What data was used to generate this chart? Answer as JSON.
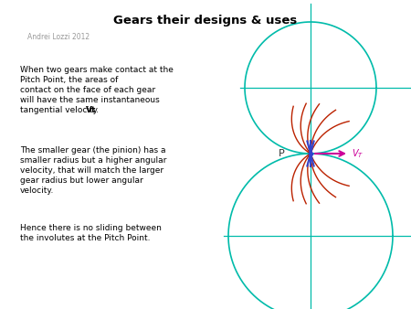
{
  "title": "Gears their designs & uses",
  "subtitle": "Andrei Lozzi 2012",
  "text1": "When two gears make contact at the\nPitch Point, the areas of\ncontact on the face of each gear\nwill have the same instantaneous\ntangential velocity Vt.",
  "text1_bold": "Vt",
  "text2": "The smaller gear (the pinion) has a\nsmaller radius but a higher angular\nvelocity, that will match the larger\ngear radius but lower angular\nvelocity.",
  "text3": "Hence there is no sliding between\nthe involutes at the Pitch Point.",
  "gear_color": "#00bbaa",
  "involute_color": "#bb2200",
  "blue_color": "#3344cc",
  "arrow_color": "#cc0099",
  "bg_color": "#ffffff",
  "pitch_label": "P",
  "vt_label": "VT"
}
